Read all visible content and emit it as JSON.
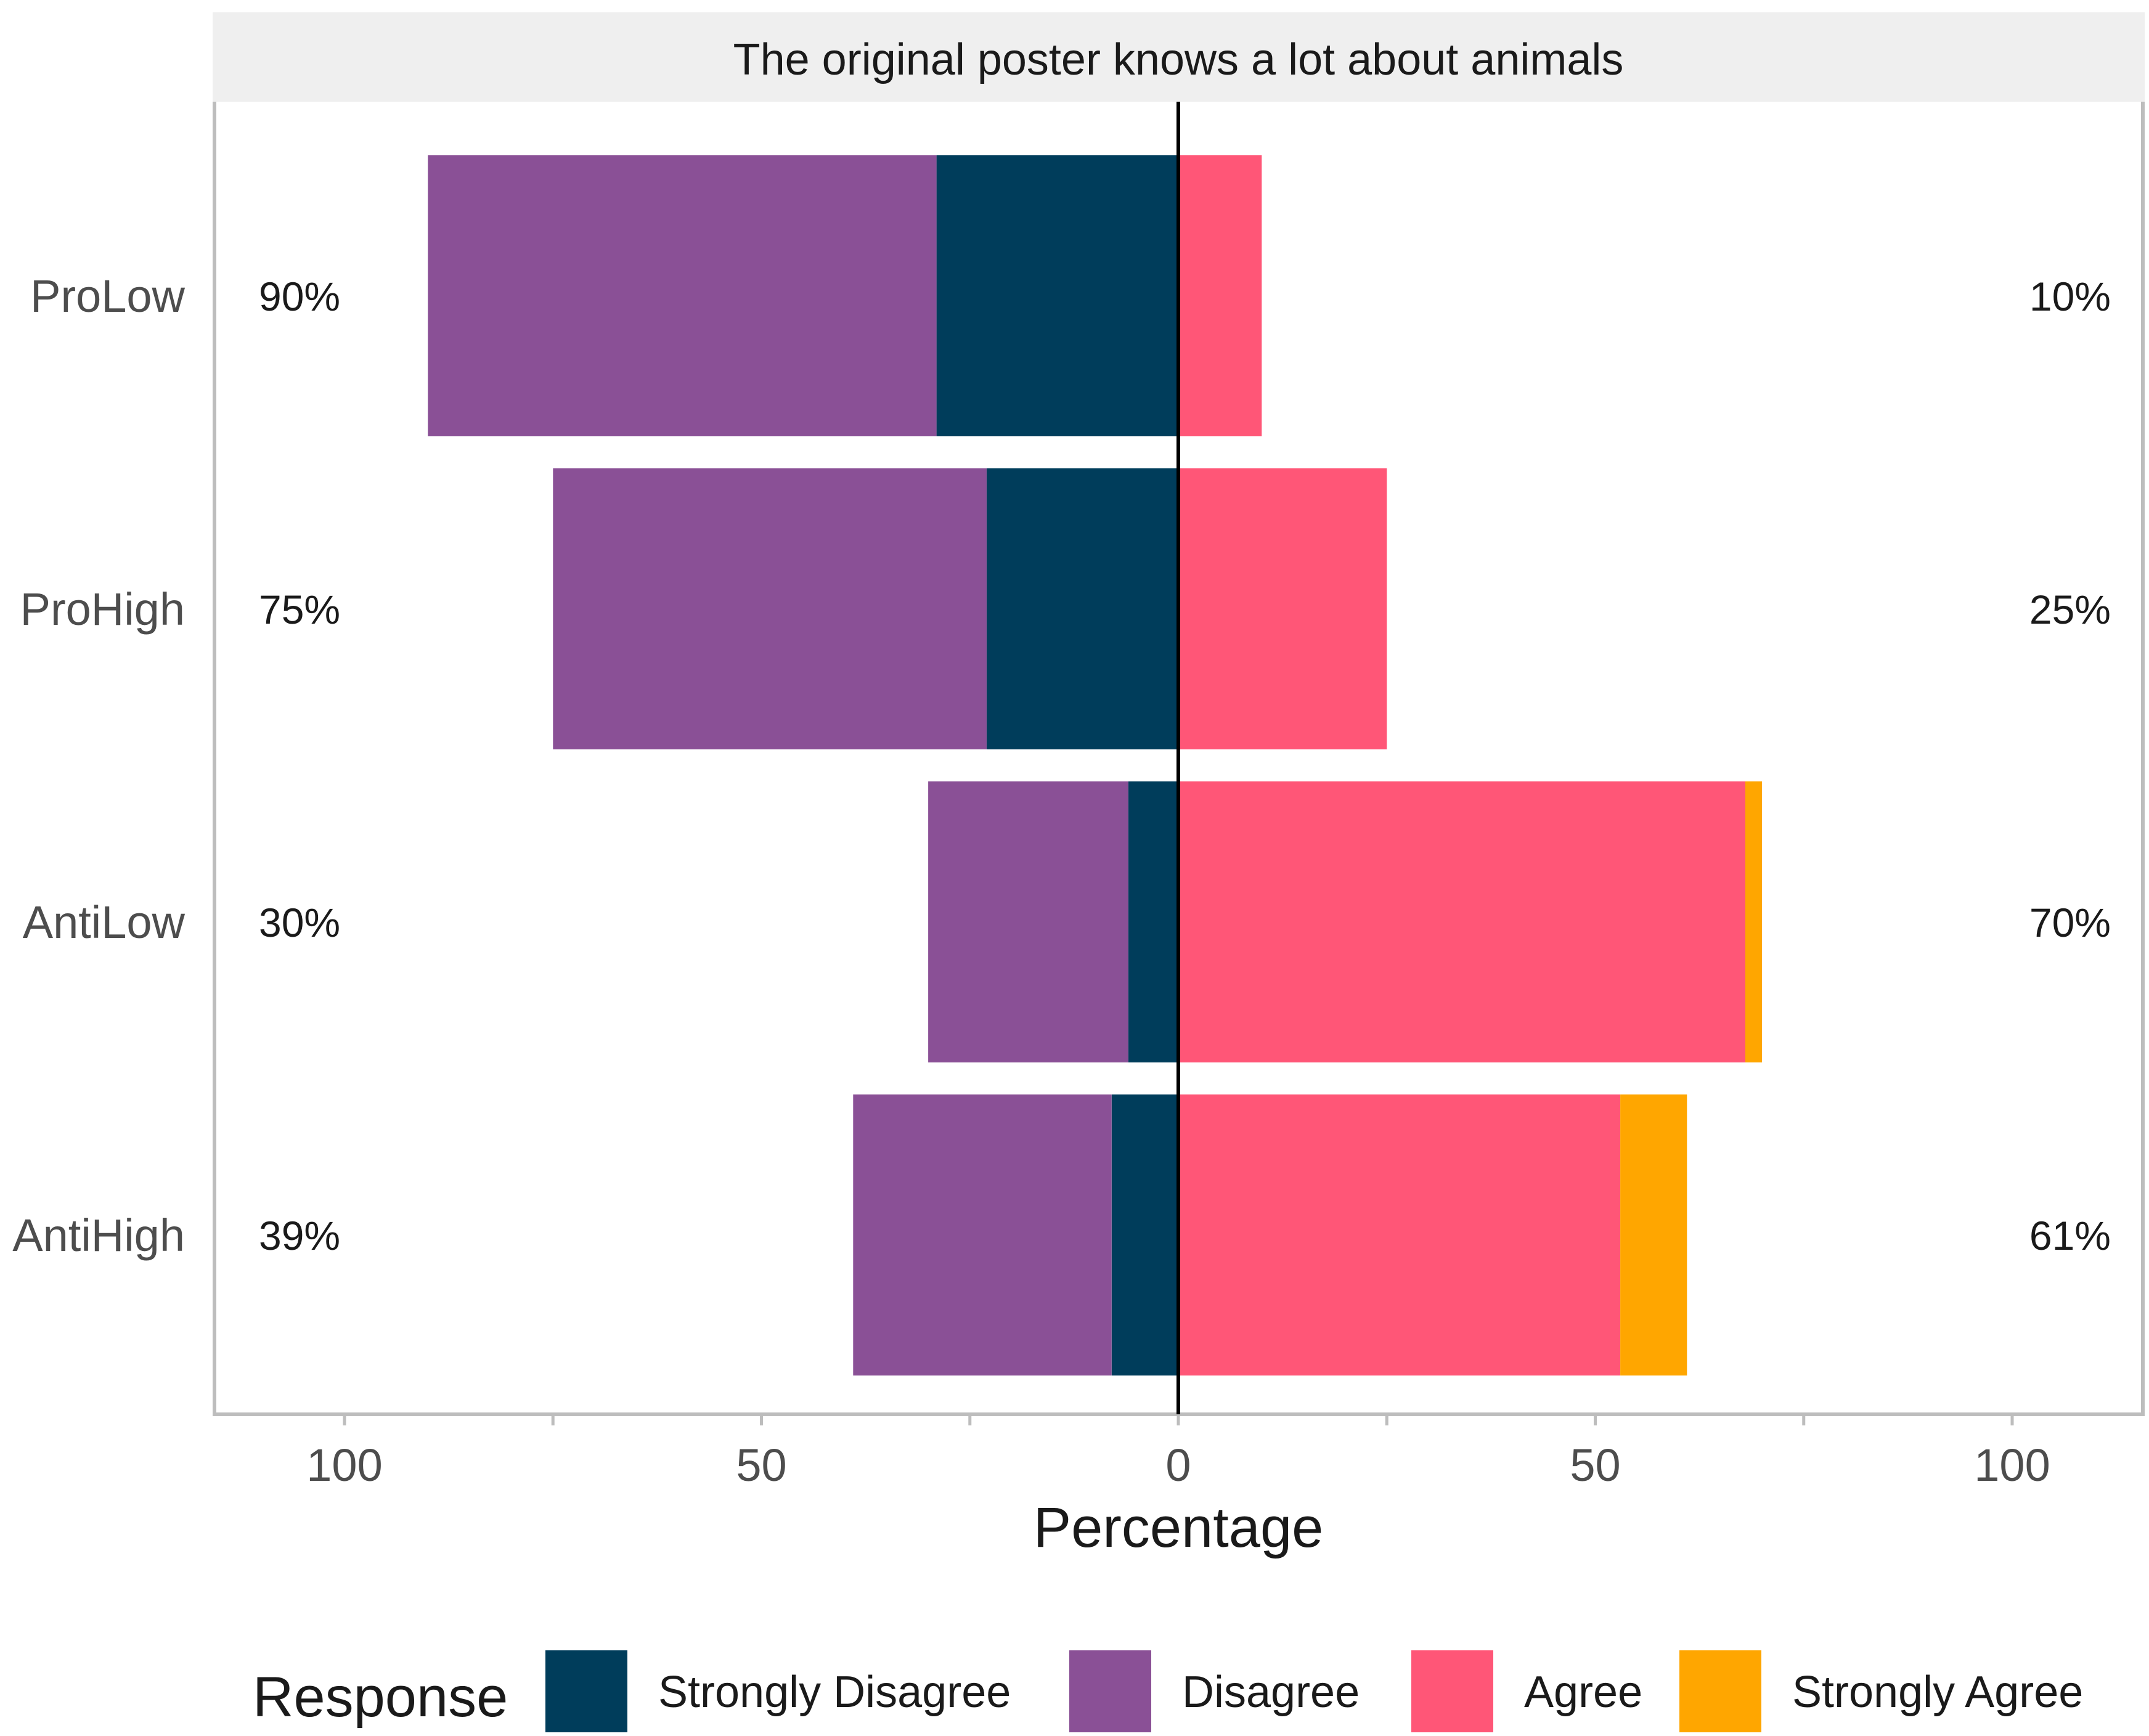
{
  "chart_data": {
    "type": "bar",
    "orientation": "horizontal-diverging",
    "title": "The original poster knows a lot about animals",
    "xlabel": "Percentage",
    "ylabel": "",
    "xlim": [
      -115,
      115
    ],
    "x_ticks": [
      -100,
      -50,
      0,
      50,
      100
    ],
    "x_tick_labels": [
      "100",
      "50",
      "0",
      "50",
      "100"
    ],
    "categories": [
      "ProLow",
      "ProHigh",
      "AntiLow",
      "AntiHigh"
    ],
    "series": [
      {
        "name": "Strongly Disagree",
        "side": "negative",
        "color": "#003d5b",
        "values": [
          29,
          23,
          6,
          8
        ]
      },
      {
        "name": "Disagree",
        "side": "negative",
        "color": "#8a5096",
        "values": [
          61,
          52,
          24,
          31
        ]
      },
      {
        "name": "Agree",
        "side": "positive",
        "color": "#ff5677",
        "values": [
          10,
          25,
          68,
          53
        ]
      },
      {
        "name": "Strongly Agree",
        "side": "positive",
        "color": "#ffa600",
        "values": [
          0,
          0,
          2,
          8
        ]
      }
    ],
    "left_labels": [
      "90%",
      "75%",
      "30%",
      "39%"
    ],
    "right_labels": [
      "10%",
      "25%",
      "70%",
      "61%"
    ],
    "legend": {
      "title": "Response",
      "position": "bottom",
      "items": [
        "Strongly Disagree",
        "Disagree",
        "Agree",
        "Strongly Agree"
      ]
    },
    "grid": false,
    "strip_color": "#efefef",
    "panel_border_color": "#bdbdbd"
  }
}
